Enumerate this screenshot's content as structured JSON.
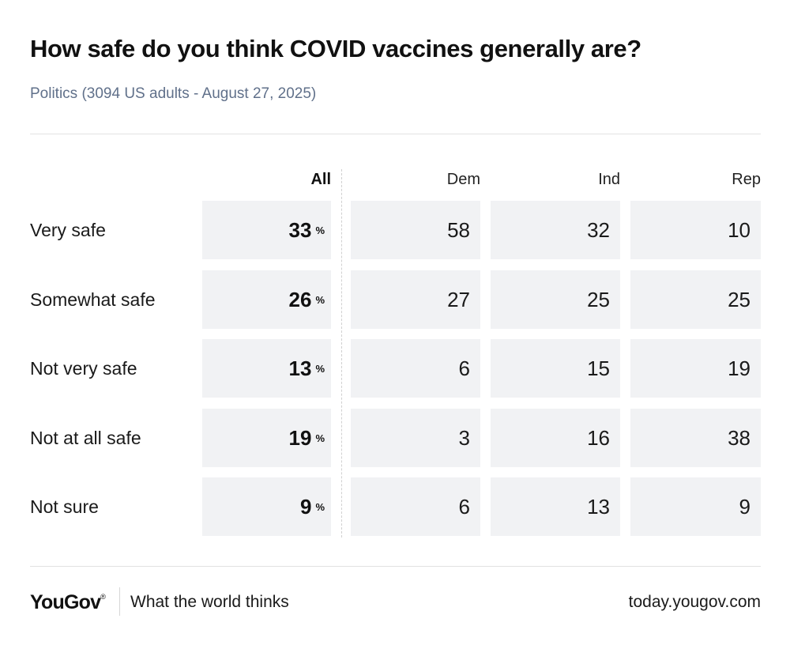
{
  "header": {
    "title": "How safe do you think COVID vaccines generally are?",
    "subtitle": "Politics (3094 US adults - August 27, 2025)"
  },
  "chart_data": {
    "type": "table",
    "title": "How safe do you think COVID vaccines generally are?",
    "subtitle": "Politics (3094 US adults - August 27, 2025)",
    "columns": [
      "All",
      "Dem",
      "Ind",
      "Rep"
    ],
    "percent_symbol": "%",
    "rows": [
      {
        "label": "Very safe",
        "values": [
          "33",
          "58",
          "32",
          "10"
        ]
      },
      {
        "label": "Somewhat safe",
        "values": [
          "26",
          "27",
          "25",
          "25"
        ]
      },
      {
        "label": "Not very safe",
        "values": [
          "13",
          "6",
          "15",
          "19"
        ]
      },
      {
        "label": "Not at all safe",
        "values": [
          "19",
          "3",
          "16",
          "38"
        ]
      },
      {
        "label": "Not sure",
        "values": [
          "9",
          "6",
          "13",
          "9"
        ]
      }
    ]
  },
  "footer": {
    "brand": "YouGov",
    "brand_mark": "®",
    "tagline": "What the world thinks",
    "url": "today.yougov.com"
  },
  "colors": {
    "cell_background": "#f1f2f4",
    "subtitle_text": "#60708a",
    "rule": "#e2e2e2"
  }
}
